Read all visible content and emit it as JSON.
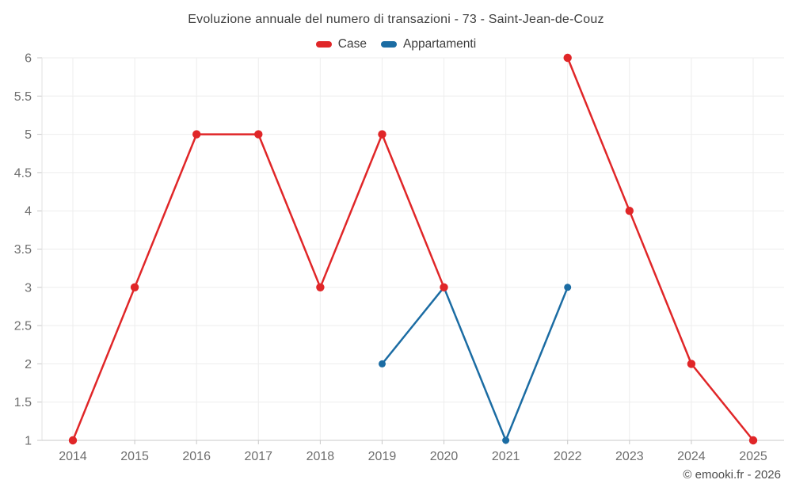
{
  "title": "Evoluzione annuale del numero di transazioni - 73 - Saint-Jean-de-Couz",
  "attribution": "© emooki.fr - 2026",
  "colors": {
    "case_red": "#e02628",
    "appartamenti_blue": "#1b6ca3",
    "gridline": "#ededed",
    "axis_line": "#c8c8c8",
    "left_axis_line": "#e2e2e2",
    "tick_label": "#6e6e6e",
    "title_text": "#3e3e3e"
  },
  "chart_data": {
    "type": "line",
    "x": [
      2014,
      2015,
      2016,
      2017,
      2018,
      2019,
      2020,
      2021,
      2022,
      2023,
      2024,
      2025
    ],
    "series": [
      {
        "name": "Case",
        "color": "#e02628",
        "marker_radius": 5.2,
        "values": [
          1,
          3,
          5,
          5,
          3,
          5,
          3,
          null,
          6,
          4,
          2,
          1
        ]
      },
      {
        "name": "Appartamenti",
        "color": "#1b6ca3",
        "marker_radius": 4.5,
        "values": [
          null,
          null,
          null,
          null,
          null,
          2,
          3,
          1,
          3,
          null,
          null,
          null
        ]
      }
    ],
    "title": "Evoluzione annuale del numero di transazioni - 73 - Saint-Jean-de-Couz",
    "xlabel": "",
    "ylabel": "",
    "ylim": [
      1,
      6
    ],
    "ytick_step": 0.5,
    "grid": true,
    "legend_position": "top"
  }
}
